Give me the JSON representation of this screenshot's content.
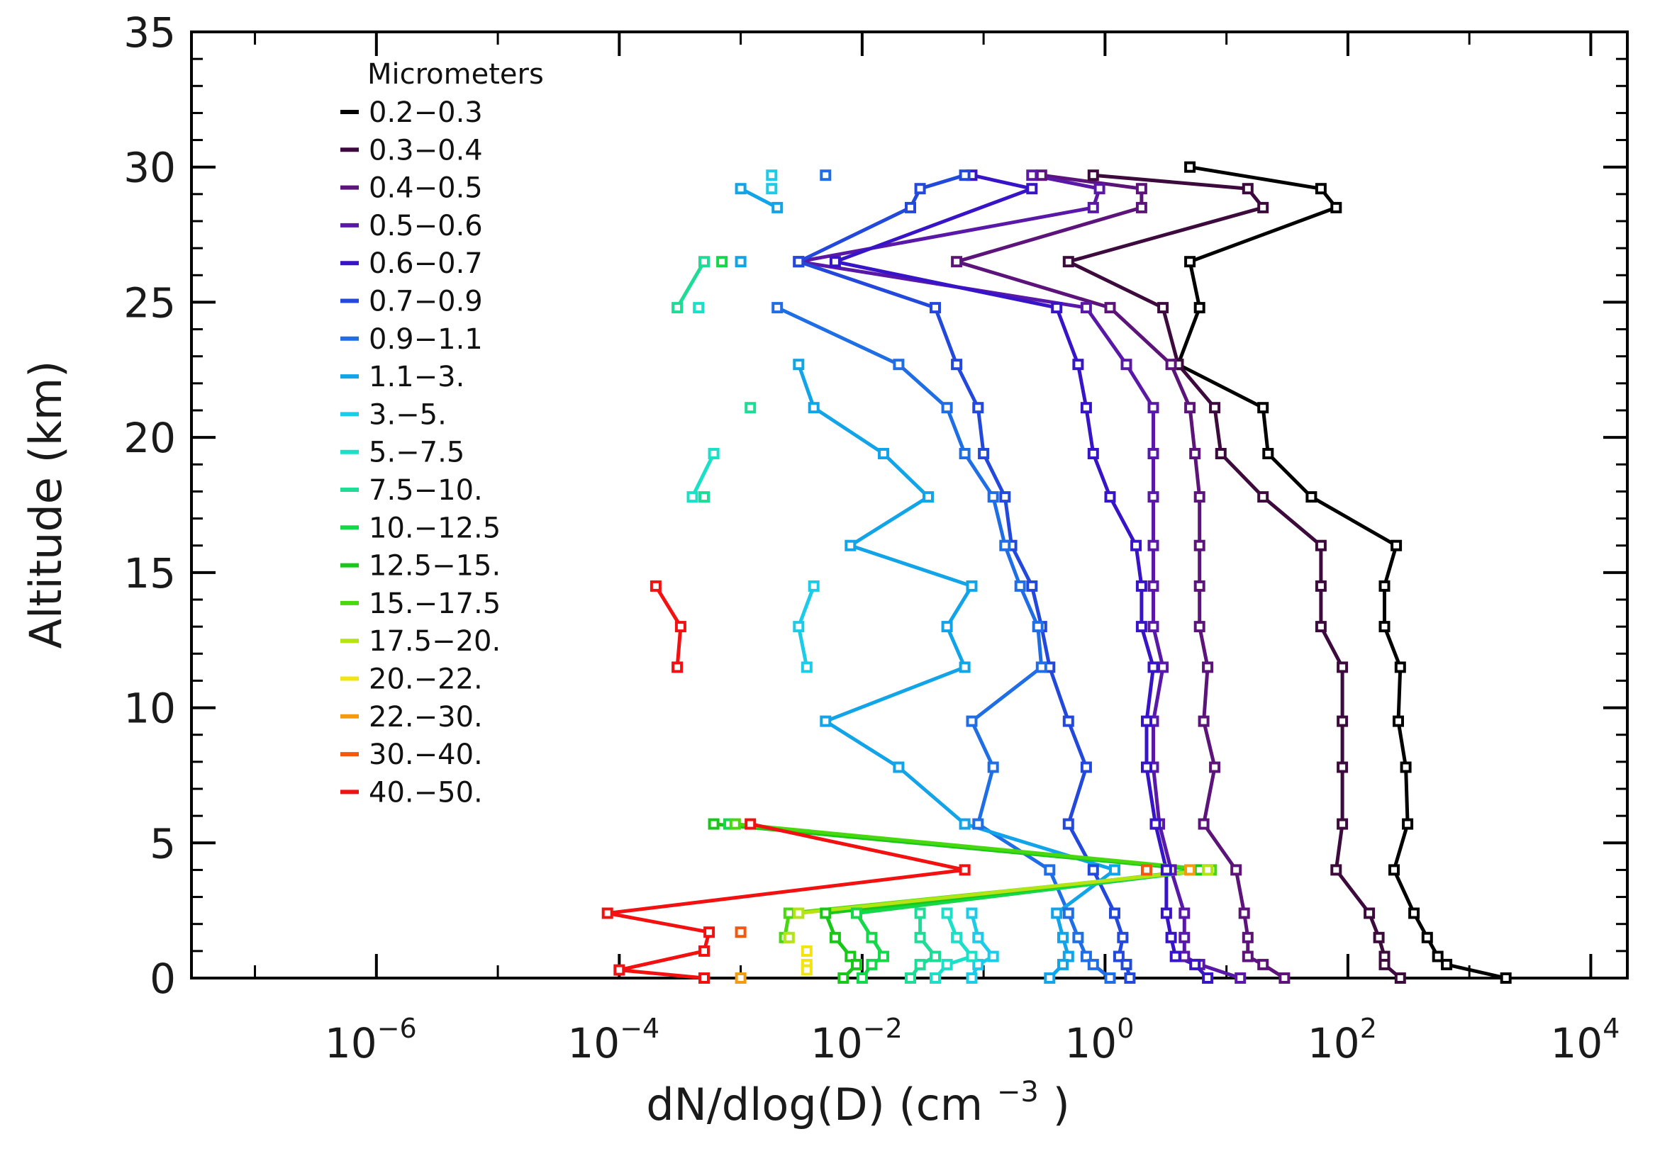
{
  "chart_data": {
    "type": "line",
    "x_scale": "log",
    "xlabel_base": "dN/dlog(D) (cm",
    "xlabel_sup": "−3",
    "xlabel_close": ")",
    "ylabel": "Altitude (km)",
    "xlim": [
      3e-08,
      20000
    ],
    "ylim": [
      0,
      35
    ],
    "x_ticks": [
      {
        "base": "10",
        "exp": "−6",
        "value": 1e-06
      },
      {
        "base": "10",
        "exp": "−4",
        "value": 0.0001
      },
      {
        "base": "10",
        "exp": "−2",
        "value": 0.01
      },
      {
        "base": "10",
        "exp": "0",
        "value": 1
      },
      {
        "base": "10",
        "exp": "2",
        "value": 100
      },
      {
        "base": "10",
        "exp": "4",
        "value": 10000
      }
    ],
    "y_ticks": [
      {
        "label": "0",
        "value": 0
      },
      {
        "label": "5",
        "value": 5
      },
      {
        "label": "10",
        "value": 10
      },
      {
        "label": "15",
        "value": 15
      },
      {
        "label": "20",
        "value": 20
      },
      {
        "label": "25",
        "value": 25
      },
      {
        "label": "30",
        "value": 30
      },
      {
        "label": "35",
        "value": 35
      }
    ],
    "legend": {
      "title": "Micrometers",
      "placement": "top-left"
    },
    "series": [
      {
        "name": "0.2−0.3",
        "color": "#000000",
        "segments": [
          [
            [
              5,
              30
            ],
            [
              60,
              29.2
            ],
            [
              80,
              28.5
            ],
            [
              5,
              26.5
            ],
            [
              6,
              24.8
            ],
            [
              4,
              22.7
            ],
            [
              20,
              21.1
            ],
            [
              22,
              19.4
            ],
            [
              50,
              17.8
            ],
            [
              250,
              16
            ],
            [
              200,
              14.5
            ],
            [
              200,
              13
            ],
            [
              270,
              11.5
            ],
            [
              260,
              9.5
            ],
            [
              300,
              7.8
            ],
            [
              310,
              5.7
            ],
            [
              240,
              4
            ],
            [
              350,
              2.4
            ],
            [
              450,
              1.5
            ],
            [
              550,
              0.8
            ],
            [
              650,
              0.5
            ],
            [
              2000,
              0
            ]
          ]
        ]
      },
      {
        "name": "0.3−0.4",
        "color": "#3d0a3d",
        "segments": [
          [
            [
              0.8,
              29.7
            ],
            [
              15,
              29.2
            ],
            [
              20,
              28.5
            ],
            [
              0.5,
              26.5
            ],
            [
              3,
              24.8
            ],
            [
              4,
              22.7
            ],
            [
              8,
              21.1
            ],
            [
              9,
              19.4
            ],
            [
              20,
              17.8
            ],
            [
              60,
              16
            ],
            [
              60,
              14.5
            ],
            [
              60,
              13
            ],
            [
              90,
              11.5
            ],
            [
              90,
              9.5
            ],
            [
              90,
              7.8
            ],
            [
              90,
              5.7
            ],
            [
              80,
              4
            ],
            [
              150,
              2.4
            ],
            [
              180,
              1.5
            ],
            [
              200,
              0.8
            ],
            [
              200,
              0.5
            ],
            [
              270,
              0
            ]
          ]
        ]
      },
      {
        "name": "0.4−0.5",
        "color": "#5c147a",
        "segments": [
          [
            [
              0.3,
              29.7
            ],
            [
              2,
              29.2
            ],
            [
              2,
              28.5
            ],
            [
              0.06,
              26.5
            ],
            [
              1.1,
              24.8
            ],
            [
              3.5,
              22.7
            ],
            [
              5,
              21.1
            ],
            [
              5.5,
              19.4
            ],
            [
              6,
              17.8
            ],
            [
              6,
              16
            ],
            [
              6,
              14.5
            ],
            [
              6,
              13
            ],
            [
              7,
              11.5
            ],
            [
              6.5,
              9.5
            ],
            [
              8,
              7.8
            ],
            [
              6.5,
              5.7
            ],
            [
              12,
              4
            ],
            [
              14,
              2.4
            ],
            [
              15,
              1.5
            ],
            [
              15,
              0.8
            ],
            [
              20,
              0.5
            ],
            [
              30,
              0
            ]
          ]
        ]
      },
      {
        "name": "0.5−0.6",
        "color": "#5a18a8",
        "segments": [
          [
            [
              0.25,
              29.7
            ],
            [
              0.9,
              29.2
            ],
            [
              0.8,
              28.5
            ],
            [
              0.003,
              26.5
            ],
            [
              0.7,
              24.8
            ],
            [
              1.5,
              22.7
            ],
            [
              2.5,
              21.1
            ],
            [
              2.5,
              19.4
            ],
            [
              2.5,
              17.8
            ],
            [
              2.5,
              16
            ],
            [
              2.5,
              14.5
            ],
            [
              2.5,
              13
            ],
            [
              3,
              11.5
            ],
            [
              2.5,
              9.5
            ],
            [
              2.5,
              7.8
            ],
            [
              2.8,
              5.7
            ],
            [
              3.5,
              4
            ],
            [
              4.5,
              2.4
            ],
            [
              4.5,
              1.5
            ],
            [
              4.5,
              0.8
            ],
            [
              6,
              0.5
            ],
            [
              13,
              0
            ]
          ]
        ]
      },
      {
        "name": "0.6−0.7",
        "color": "#3814c8",
        "segments": [
          [
            [
              0.08,
              29.7
            ],
            [
              0.25,
              29.2
            ],
            [
              0.006,
              26.5
            ],
            [
              0.4,
              24.8
            ],
            [
              0.6,
              22.7
            ],
            [
              0.7,
              21.1
            ],
            [
              0.8,
              19.4
            ],
            [
              1.1,
              17.8
            ],
            [
              1.8,
              16
            ],
            [
              2,
              14.5
            ],
            [
              2,
              13
            ],
            [
              2.5,
              11.5
            ],
            [
              2.2,
              9.5
            ],
            [
              2.2,
              7.8
            ],
            [
              2.6,
              5.7
            ],
            [
              3.2,
              4
            ],
            [
              3.2,
              2.4
            ],
            [
              3.5,
              1.5
            ],
            [
              3.8,
              0.8
            ],
            [
              5.5,
              0.5
            ],
            [
              7,
              0
            ]
          ]
        ]
      },
      {
        "name": "0.7−0.9",
        "color": "#2248dc",
        "segments": [
          [
            [
              0.07,
              29.7
            ],
            [
              0.03,
              29.2
            ],
            [
              0.025,
              28.5
            ],
            [
              0.003,
              26.5
            ],
            [
              0.04,
              24.8
            ],
            [
              0.06,
              22.7
            ],
            [
              0.09,
              21.1
            ],
            [
              0.1,
              19.4
            ],
            [
              0.15,
              17.8
            ],
            [
              0.17,
              16
            ],
            [
              0.25,
              14.5
            ],
            [
              0.3,
              13
            ],
            [
              0.35,
              11.5
            ],
            [
              0.5,
              9.5
            ],
            [
              0.7,
              7.8
            ],
            [
              0.5,
              5.7
            ],
            [
              0.8,
              4
            ],
            [
              1.2,
              2.4
            ],
            [
              1.4,
              1.5
            ],
            [
              1.3,
              0.8
            ],
            [
              1.5,
              0.5
            ],
            [
              1.6,
              0
            ]
          ]
        ]
      },
      {
        "name": "0.9−1.1",
        "color": "#1f6ee6",
        "segments": [
          [
            [
              0.005,
              29.7
            ]
          ],
          [
            [
              0.002,
              24.8
            ],
            [
              0.02,
              22.7
            ],
            [
              0.05,
              21.1
            ],
            [
              0.07,
              19.4
            ],
            [
              0.12,
              17.8
            ],
            [
              0.15,
              16
            ],
            [
              0.2,
              14.5
            ],
            [
              0.28,
              13
            ],
            [
              0.3,
              11.5
            ],
            [
              0.08,
              9.5
            ],
            [
              0.12,
              7.8
            ],
            [
              0.09,
              5.7
            ],
            [
              0.35,
              4
            ],
            [
              0.5,
              2.4
            ],
            [
              0.6,
              1.5
            ],
            [
              0.7,
              0.8
            ],
            [
              0.8,
              0.5
            ],
            [
              1.1,
              0
            ]
          ]
        ]
      },
      {
        "name": "1.1−3.",
        "color": "#11a4e8",
        "segments": [
          [
            [
              0.001,
              29.2
            ],
            [
              0.002,
              28.5
            ]
          ],
          [
            [
              0.001,
              26.5
            ]
          ],
          [
            [
              0.003,
              22.7
            ],
            [
              0.004,
              21.1
            ],
            [
              0.015,
              19.4
            ],
            [
              0.035,
              17.8
            ],
            [
              0.008,
              16
            ],
            [
              0.08,
              14.5
            ],
            [
              0.05,
              13
            ],
            [
              0.07,
              11.5
            ],
            [
              0.005,
              9.5
            ],
            [
              0.02,
              7.8
            ],
            [
              0.07,
              5.7
            ],
            [
              1.2,
              4
            ],
            [
              0.4,
              2.4
            ],
            [
              0.45,
              1.5
            ],
            [
              0.5,
              0.8
            ],
            [
              0.45,
              0.5
            ],
            [
              0.35,
              0
            ]
          ]
        ]
      },
      {
        "name": "3.−5.",
        "color": "#1ccbe8",
        "segments": [
          [
            [
              0.0018,
              29.7
            ]
          ],
          [
            [
              0.0018,
              29.2
            ]
          ],
          [
            [
              0.004,
              14.5
            ],
            [
              0.003,
              13
            ],
            [
              0.0035,
              11.5
            ]
          ],
          [
            [
              0.08,
              2.4
            ],
            [
              0.09,
              1.5
            ],
            [
              0.12,
              0.8
            ],
            [
              0.09,
              0.5
            ],
            [
              0.08,
              0
            ]
          ]
        ]
      },
      {
        "name": "5.−7.5",
        "color": "#1ae0c8",
        "segments": [
          [
            [
              0.00045,
              24.8
            ]
          ],
          [
            [
              0.0006,
              19.4
            ],
            [
              0.0004,
              17.8
            ]
          ],
          [
            [
              0.05,
              2.4
            ],
            [
              0.06,
              1.5
            ],
            [
              0.08,
              0.8
            ],
            [
              0.05,
              0.5
            ],
            [
              0.04,
              0
            ]
          ]
        ]
      },
      {
        "name": "7.5−10.",
        "color": "#1edc96",
        "segments": [
          [
            [
              0.0005,
              26.5
            ],
            [
              0.0003,
              24.8
            ]
          ],
          [
            [
              0.0012,
              21.1
            ]
          ],
          [
            [
              0.0005,
              17.8
            ]
          ],
          [
            [
              0.03,
              2.4
            ],
            [
              0.03,
              1.5
            ],
            [
              0.04,
              0.8
            ],
            [
              0.03,
              0.5
            ],
            [
              0.025,
              0
            ]
          ]
        ]
      },
      {
        "name": "10.−12.5",
        "color": "#14d84a",
        "segments": [
          [
            [
              0.0007,
              26.5
            ]
          ],
          [
            [
              0.0008,
              5.7
            ],
            [
              7,
              4
            ],
            [
              0.009,
              2.4
            ],
            [
              0.012,
              1.5
            ],
            [
              0.015,
              0.8
            ],
            [
              0.012,
              0.5
            ],
            [
              0.01,
              0
            ]
          ]
        ]
      },
      {
        "name": "12.5−15.",
        "color": "#18c818",
        "segments": [
          [
            [
              0.0006,
              5.7
            ],
            [
              6,
              4
            ],
            [
              0.005,
              2.4
            ],
            [
              0.006,
              1.5
            ],
            [
              0.008,
              0.8
            ],
            [
              0.009,
              0.5
            ],
            [
              0.007,
              0
            ]
          ]
        ]
      },
      {
        "name": "15.−17.5",
        "color": "#48d810",
        "segments": [
          [
            [
              0.0009,
              5.7
            ],
            [
              7.5,
              4
            ],
            [
              0.0025,
              2.4
            ],
            [
              0.0023,
              1.5
            ]
          ]
        ]
      },
      {
        "name": "17.5−20.",
        "color": "#b4e414",
        "segments": [
          [
            [
              0.003,
              2.4
            ],
            [
              7,
              4
            ]
          ],
          [
            [
              0.0025,
              1.5
            ]
          ]
        ]
      },
      {
        "name": "20.−22.",
        "color": "#f2e410",
        "segments": [
          [
            [
              0.0035,
              1
            ]
          ],
          [
            [
              0.0035,
              0.5
            ]
          ],
          [
            [
              0.0035,
              0.3
            ]
          ]
        ]
      },
      {
        "name": "22.−30.",
        "color": "#f49a10",
        "segments": [
          [
            [
              0.001,
              0
            ]
          ],
          [
            [
              5,
              4
            ]
          ]
        ]
      },
      {
        "name": "30.−40.",
        "color": "#f45810",
        "segments": [
          [
            [
              0.001,
              1.7
            ]
          ],
          [
            [
              2.2,
              4
            ]
          ]
        ]
      },
      {
        "name": "40.−50.",
        "color": "#f21010",
        "segments": [
          [
            [
              0.0002,
              14.5
            ],
            [
              0.00032,
              13
            ],
            [
              0.0003,
              11.5
            ]
          ],
          [
            [
              0.0012,
              5.7
            ],
            [
              0.07,
              4
            ],
            [
              8e-05,
              2.4
            ],
            [
              0.00055,
              1.7
            ],
            [
              0.0005,
              1
            ],
            [
              0.0001,
              0.3
            ],
            [
              0.0005,
              0
            ]
          ]
        ]
      }
    ]
  }
}
